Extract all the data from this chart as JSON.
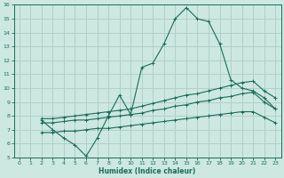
{
  "xlabel": "Humidex (Indice chaleur)",
  "bg_color": "#cce8e0",
  "grid_color": "#b0d0c8",
  "line_color": "#1a6b5a",
  "xlim": [
    -0.5,
    23.5
  ],
  "ylim": [
    5,
    16
  ],
  "xticks": [
    0,
    1,
    2,
    3,
    4,
    5,
    6,
    7,
    8,
    9,
    10,
    11,
    12,
    13,
    14,
    15,
    16,
    17,
    18,
    19,
    20,
    21,
    22,
    23
  ],
  "yticks": [
    5,
    6,
    7,
    8,
    9,
    10,
    11,
    12,
    13,
    14,
    15,
    16
  ],
  "curve1_x": [
    2,
    3,
    4,
    5,
    6,
    7,
    8,
    9,
    10,
    11,
    12,
    13,
    14,
    15,
    16,
    17,
    18,
    19,
    20,
    21,
    22,
    23
  ],
  "curve1_y": [
    7.7,
    7.0,
    6.4,
    5.9,
    5.1,
    6.4,
    8.0,
    9.5,
    8.1,
    11.5,
    11.8,
    13.2,
    15.0,
    15.8,
    15.0,
    14.8,
    13.2,
    10.6,
    10.0,
    9.8,
    9.3,
    8.5
  ],
  "curve2_x": [
    2,
    3,
    4,
    5,
    6,
    7,
    8,
    9,
    10,
    11,
    12,
    13,
    14,
    15,
    16,
    17,
    18,
    19,
    20,
    21,
    22,
    23
  ],
  "curve2_y": [
    7.8,
    7.8,
    7.9,
    8.0,
    8.1,
    8.2,
    8.3,
    8.4,
    8.5,
    8.7,
    8.9,
    9.1,
    9.3,
    9.5,
    9.6,
    9.8,
    10.0,
    10.2,
    10.4,
    10.5,
    9.8,
    9.3
  ],
  "curve3_x": [
    2,
    3,
    4,
    5,
    6,
    7,
    8,
    9,
    10,
    11,
    12,
    13,
    14,
    15,
    16,
    17,
    18,
    19,
    20,
    21,
    22,
    23
  ],
  "curve3_y": [
    7.5,
    7.5,
    7.6,
    7.7,
    7.7,
    7.8,
    7.9,
    8.0,
    8.1,
    8.2,
    8.4,
    8.5,
    8.7,
    8.8,
    9.0,
    9.1,
    9.3,
    9.4,
    9.6,
    9.7,
    9.0,
    8.5
  ],
  "curve4_x": [
    2,
    3,
    4,
    5,
    6,
    7,
    8,
    9,
    10,
    11,
    12,
    13,
    14,
    15,
    16,
    17,
    18,
    19,
    20,
    21,
    22,
    23
  ],
  "curve4_y": [
    6.8,
    6.8,
    6.9,
    6.9,
    7.0,
    7.1,
    7.1,
    7.2,
    7.3,
    7.4,
    7.5,
    7.6,
    7.7,
    7.8,
    7.9,
    8.0,
    8.1,
    8.2,
    8.3,
    8.3,
    7.9,
    7.5
  ]
}
